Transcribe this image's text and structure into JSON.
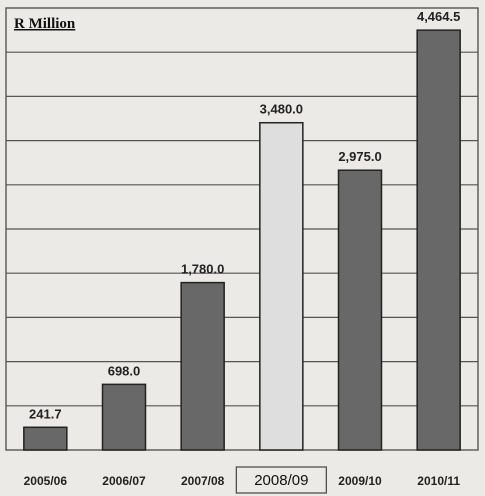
{
  "chart_data": {
    "type": "bar",
    "unit_label": "R Million",
    "categories": [
      "2005/06",
      "2006/07",
      "2007/08",
      "2008/09",
      "2009/10",
      "2010/11"
    ],
    "values": [
      241.7,
      698.0,
      1780.0,
      3480.0,
      2975.0,
      4464.5
    ],
    "value_labels": [
      "241.7",
      "698.0",
      "1,780.0",
      "3,480.0",
      "2,975.0",
      "4,464.5"
    ],
    "highlighted_category": "2008/09",
    "ylim": [
      0,
      4700
    ],
    "grid": true,
    "colors": {
      "bar": "#686868",
      "bar_highlight": "#dedede",
      "grid": "#555555",
      "background": "#eceae6"
    }
  }
}
